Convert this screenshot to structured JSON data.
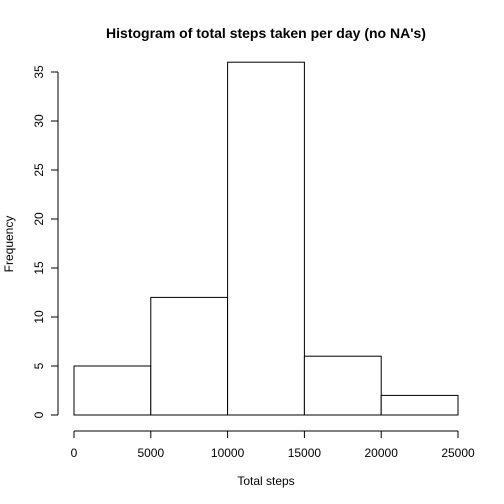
{
  "chart_data": {
    "type": "bar",
    "subtype": "histogram",
    "title": "Histogram of total steps taken per day (no NA's)",
    "xlabel": "Total steps",
    "ylabel": "Frequency",
    "bins": [
      {
        "from": 0,
        "to": 5000,
        "count": 5
      },
      {
        "from": 5000,
        "to": 10000,
        "count": 12
      },
      {
        "from": 10000,
        "to": 15000,
        "count": 36
      },
      {
        "from": 15000,
        "to": 20000,
        "count": 6
      },
      {
        "from": 20000,
        "to": 25000,
        "count": 2
      }
    ],
    "xlim": [
      0,
      25000
    ],
    "ylim": [
      0,
      35
    ],
    "x_ticks": [
      0,
      5000,
      10000,
      15000,
      20000,
      25000
    ],
    "y_ticks": [
      0,
      5,
      10,
      15,
      20,
      25,
      30,
      35
    ],
    "grid": false,
    "legend": "none",
    "bar_fill": "#ffffff",
    "bar_stroke": "#000000"
  }
}
